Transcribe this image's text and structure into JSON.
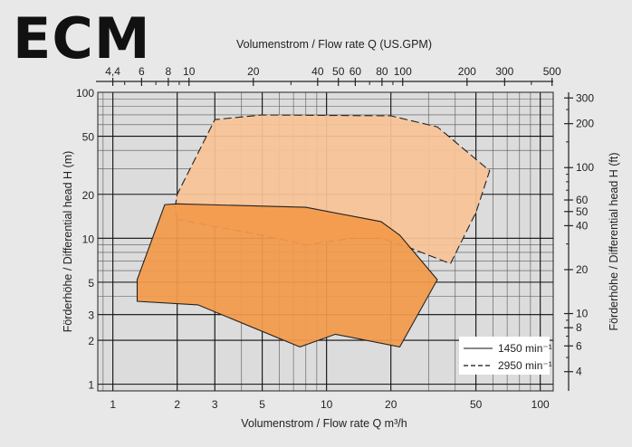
{
  "chart_data": {
    "type": "area",
    "title": "ECM",
    "x": {
      "label": "Volumenstrom / Flow rate Q m³/h",
      "scale": "log",
      "range": [
        0.85,
        115
      ],
      "ticks": [
        1,
        2,
        3,
        5,
        10,
        20,
        50,
        100
      ],
      "tick_labels": [
        "1",
        "2",
        "3",
        "5",
        "10",
        "20",
        "50",
        "100"
      ]
    },
    "x_top": {
      "label": "Volumenstrom / Flow rate Q (US.GPM)",
      "scale": "log",
      "ticks": [
        4.4,
        6,
        8,
        10,
        20,
        40,
        50,
        60,
        80,
        100,
        200,
        300,
        500
      ],
      "tick_labels": [
        "4,4",
        "6",
        "8",
        "10",
        "20",
        "40",
        "50",
        "60",
        "80",
        "100",
        "200",
        "300",
        "500"
      ]
    },
    "y": {
      "label": "Förderhöhe / Differential head H (m)",
      "scale": "log",
      "range": [
        0.9,
        100
      ],
      "ticks": [
        1,
        2,
        3,
        5,
        10,
        20,
        50,
        100
      ],
      "tick_labels": [
        "1",
        "2",
        "3",
        "5",
        "10",
        "20",
        "50",
        "100"
      ]
    },
    "y_right": {
      "label": "Förderhöhe / Differential head H (ft)",
      "scale": "log",
      "ticks": [
        4,
        6,
        8,
        10,
        20,
        40,
        50,
        60,
        100,
        200,
        300
      ],
      "tick_labels": [
        "4",
        "6",
        "8",
        "10",
        "20",
        "40",
        "50",
        "60",
        "100",
        "200",
        "300"
      ]
    },
    "grid": true,
    "legend": {
      "placement": "bottom-right"
    },
    "series": [
      {
        "name": "2950 min⁻¹",
        "line_style": "dashed",
        "fill": "#f8c396",
        "points": [
          [
            2.0,
            13.5
          ],
          [
            1.95,
            16
          ],
          [
            2.0,
            20
          ],
          [
            3.0,
            65
          ],
          [
            5.0,
            70
          ],
          [
            20,
            69
          ],
          [
            33,
            58
          ],
          [
            58,
            29
          ],
          [
            50,
            15
          ],
          [
            38,
            6.7
          ],
          [
            25,
            8.5
          ],
          [
            18,
            10
          ],
          [
            13,
            10
          ],
          [
            8,
            9
          ],
          [
            5,
            10.5
          ],
          [
            3,
            12
          ],
          [
            2.0,
            13.5
          ]
        ]
      },
      {
        "name": "1450 min⁻¹",
        "line_style": "solid",
        "fill": "#f39a4b",
        "points": [
          [
            1.3,
            5.2
          ],
          [
            1.75,
            17
          ],
          [
            2.0,
            17.2
          ],
          [
            8.0,
            16.3
          ],
          [
            18,
            13.0
          ],
          [
            22,
            10.5
          ],
          [
            33,
            5.2
          ],
          [
            22,
            1.8
          ],
          [
            11,
            2.2
          ],
          [
            7.5,
            1.8
          ],
          [
            2.5,
            3.5
          ],
          [
            1.3,
            3.7
          ],
          [
            1.3,
            5.2
          ]
        ]
      }
    ],
    "legend_entries": [
      {
        "label": "1450 min⁻¹",
        "line_style": "solid"
      },
      {
        "label": "2950 min⁻¹",
        "line_style": "dashed"
      }
    ]
  }
}
